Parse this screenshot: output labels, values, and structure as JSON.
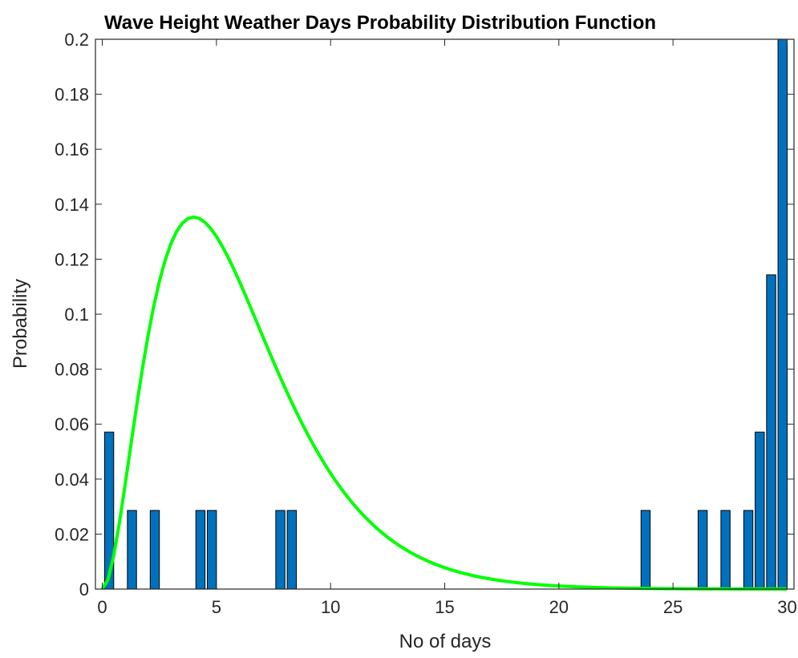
{
  "chart_data": {
    "type": "bar",
    "title": "Wave Height Weather Days Probability Distribution Function",
    "xlabel": "No of days",
    "ylabel": "Probability",
    "xlim": [
      -0.3,
      30.3
    ],
    "ylim": [
      0,
      0.2
    ],
    "xticks": [
      "0",
      "5",
      "10",
      "15",
      "20",
      "25",
      "30"
    ],
    "yticks": [
      "0",
      "0.02",
      "0.04",
      "0.06",
      "0.08",
      "0.1",
      "0.12",
      "0.14",
      "0.16",
      "0.18",
      "0.2"
    ],
    "grid": false,
    "colors": {
      "bars": "#0072BD",
      "curve": "#00FF00",
      "axes": "#262626"
    },
    "series": [
      {
        "type": "bar",
        "x": [
          0.3,
          1.3,
          2.3,
          4.3,
          4.8,
          7.8,
          8.3,
          23.8,
          26.3,
          27.3,
          28.3,
          28.8,
          29.3,
          29.8
        ],
        "values": [
          0.0571,
          0.0286,
          0.0286,
          0.0286,
          0.0286,
          0.0286,
          0.0286,
          0.0286,
          0.0286,
          0.0286,
          0.0286,
          0.0571,
          0.1143,
          0.2
        ],
        "bar_width": 0.4
      },
      {
        "type": "line",
        "distribution": "gamma",
        "shape": 3,
        "scale": 2,
        "x_range": [
          0,
          30
        ]
      }
    ]
  }
}
